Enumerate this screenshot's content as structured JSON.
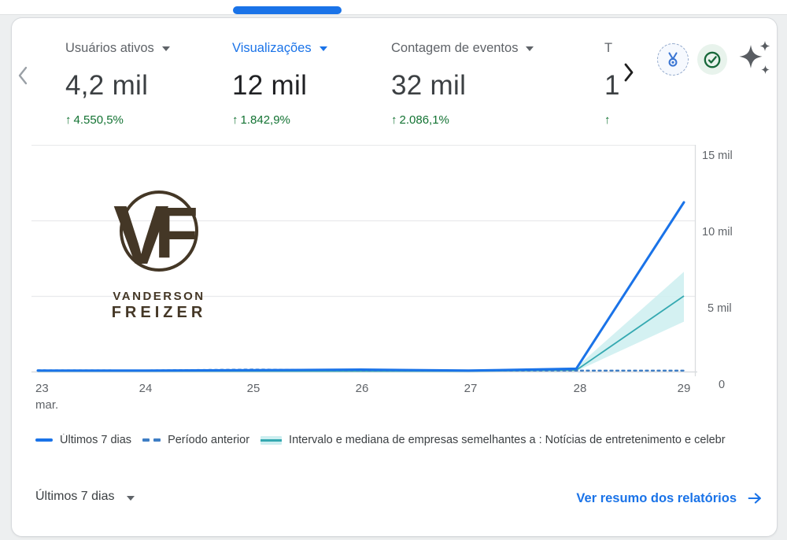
{
  "header": {
    "metrics": [
      {
        "label": "Usuários ativos",
        "value": "4,2 mil",
        "delta_arrow": "↑",
        "delta": "4.550,5%"
      },
      {
        "label": "Visualizações",
        "value": "12 mil",
        "delta_arrow": "↑",
        "delta": "1.842,9%"
      },
      {
        "label": "Contagem de eventos",
        "value": "32 mil",
        "delta_arrow": "↑",
        "delta": "2.086,1%"
      },
      {
        "label": "T",
        "value": "1",
        "delta_arrow": "↑",
        "delta": ""
      }
    ],
    "selected_metric": "Visualizações",
    "icons": [
      "scroll-left-chevron-icon",
      "scroll-right-chevron-icon",
      "medal-badge-icon",
      "verified-check-icon",
      "sparkle-stars-icon"
    ]
  },
  "chart_data": {
    "type": "line",
    "x_month_label": "mar.",
    "categories": [
      "23",
      "24",
      "25",
      "26",
      "27",
      "28",
      "29"
    ],
    "yticks": [
      "15 mil",
      "10 mil",
      "5 mil",
      "0"
    ],
    "ylim": [
      0,
      15000
    ],
    "grid": true,
    "legend_position": "bottom",
    "series": [
      {
        "name": "Últimos 7 dias",
        "style": "solid",
        "color": "#1a73e8",
        "values": [
          60,
          60,
          90,
          130,
          60,
          190,
          11200
        ]
      },
      {
        "name": "Período anterior",
        "style": "dashed",
        "color": "#3f7ec5",
        "values": [
          80,
          70,
          130,
          80,
          70,
          60,
          60
        ]
      },
      {
        "name": "Intervalo e mediana de empresas semelhantes a : Notícias de entretenimento e celebr",
        "style": "band",
        "color": "#35a9b1",
        "band_color": "#cdeef0",
        "median": [
          25,
          25,
          25,
          25,
          25,
          90,
          5000
        ],
        "upper": [
          50,
          50,
          50,
          50,
          50,
          280,
          6600
        ],
        "lower": [
          5,
          5,
          5,
          5,
          5,
          25,
          3300
        ]
      }
    ]
  },
  "legend": {
    "items": [
      {
        "label": "Últimos 7 dias"
      },
      {
        "label": "Período anterior"
      },
      {
        "label": "Intervalo e mediana de empresas semelhantes a : Notícias de entretenimento e celebr"
      }
    ]
  },
  "watermark": {
    "monogram_v": "V",
    "monogram_f": "F",
    "line1": "VANDERSON",
    "line2": "FREIZER"
  },
  "footer": {
    "range_label": "Últimos 7 dias",
    "link_label": "Ver resumo dos relatórios"
  },
  "colors": {
    "accent": "#1a73e8",
    "positive": "#137333",
    "benchmark": "#35a9b1",
    "benchmark_band": "#cdeef0",
    "previous_period": "#3f7ec5"
  }
}
